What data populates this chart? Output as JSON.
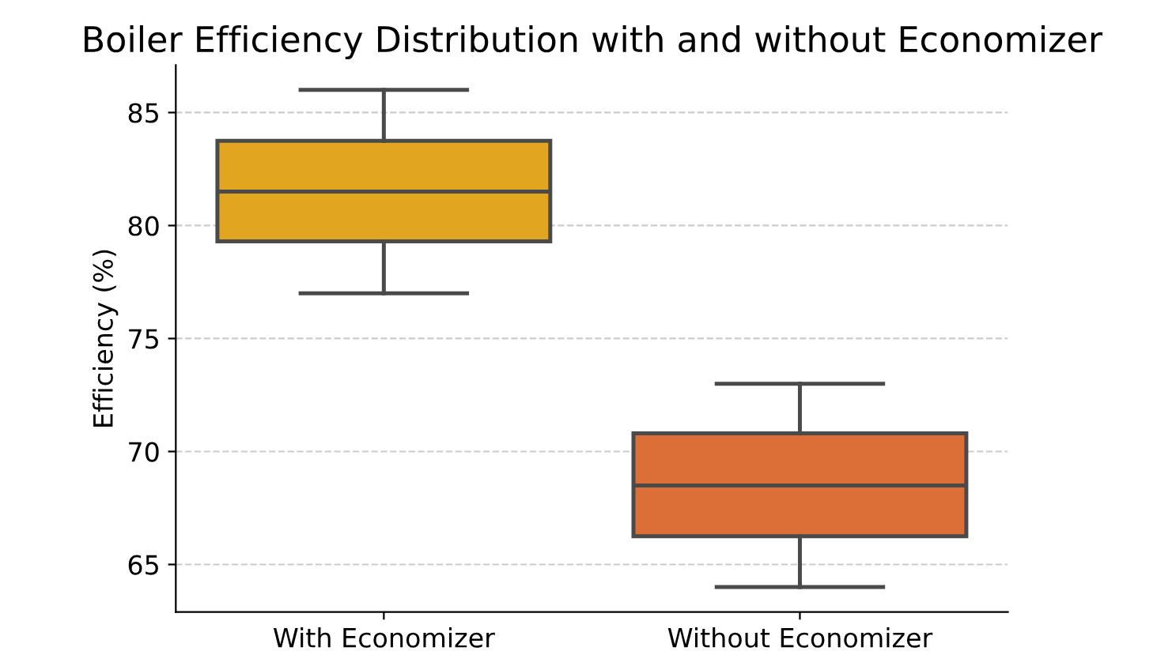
{
  "chart_data": {
    "type": "box",
    "title": "Boiler Efficiency Distribution with and without Economizer",
    "ylabel": "Efficiency (%)",
    "categories": [
      "With Economizer",
      "Without Economizer"
    ],
    "boxes": [
      {
        "low": 77,
        "q1": 79.3,
        "median": 81.5,
        "q3": 83.75,
        "high": 86
      },
      {
        "low": 64,
        "q1": 66.25,
        "median": 68.5,
        "q3": 70.8,
        "high": 73
      }
    ],
    "colors": [
      "#e1a51f",
      "#dc6e37"
    ],
    "ylim": [
      62.9,
      87.1
    ],
    "yticks": [
      65,
      70,
      75,
      80,
      85
    ],
    "grid": "y"
  }
}
